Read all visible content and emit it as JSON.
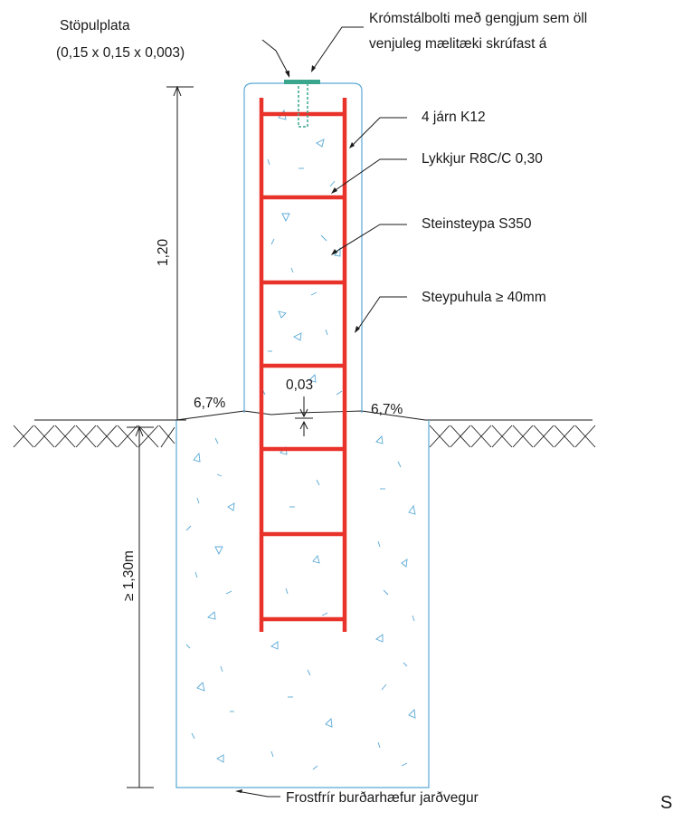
{
  "labels": {
    "base_plate": "Stöpulplata",
    "base_plate_dims": "(0,15 x 0,15 x 0,003)",
    "bolt_line1": "Krómstálbolti með gengjum sem öll",
    "bolt_line2": "venjuleg mælitæki skrúfast á",
    "rebar": "4 járn K12",
    "stirrups": "Lykkjur R8C/C 0,30",
    "concrete": "Steinsteypa S350",
    "cover": "Steypuhula ≥ 40mm",
    "height_above": "1,20",
    "depth_below": "≥ 1,30m",
    "slope_left": "6,7%",
    "slope_right": "6,7%",
    "top_offset": "0,03",
    "foundation_soil": "Frostfrír burðarhæfur jarðvegur",
    "edge_letter": "S"
  },
  "colors": {
    "concrete_outline": "#5aa9d6",
    "rebar": "#e8322a",
    "plate": "#3aa68e",
    "line": "#1a1a1a"
  }
}
